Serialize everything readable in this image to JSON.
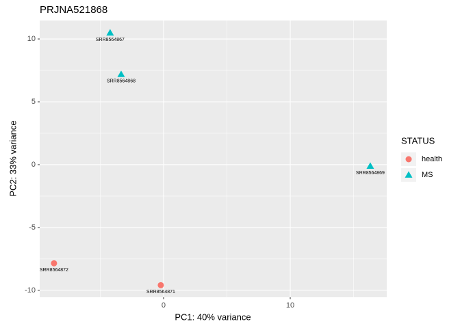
{
  "chart_data": {
    "type": "scatter",
    "title": "PRJNA521868",
    "x_label": "PC1: 40% variance",
    "y_label": "PC2: 33% variance",
    "legend_title": "STATUS",
    "legend_position": "right",
    "xlim": [
      -9.78,
      17.62
    ],
    "ylim": [
      -10.55,
      11.47
    ],
    "xticks": [
      0,
      10
    ],
    "yticks": [
      -10,
      -5,
      0,
      5,
      10
    ],
    "x_minor_grid": [
      -5,
      5,
      15
    ],
    "y_minor_grid": [
      -7.5,
      -2.5,
      2.5,
      7.5
    ],
    "grid": true,
    "series": [
      {
        "name": "health",
        "color": "#F8766D",
        "shape": "circle",
        "x": [
          -8.65,
          -0.22
        ],
        "values": [
          -7.85,
          -9.59
        ],
        "labels": [
          "SRR8564872",
          "SRR8564871"
        ]
      },
      {
        "name": "MS",
        "color": "#00BFC4",
        "shape": "triangle",
        "x": [
          -4.22,
          -3.35,
          16.32
        ],
        "values": [
          10.49,
          7.19,
          -0.11
        ],
        "labels": [
          "SRR8564867",
          "SRR8564868",
          "SRR8564869"
        ]
      }
    ]
  }
}
